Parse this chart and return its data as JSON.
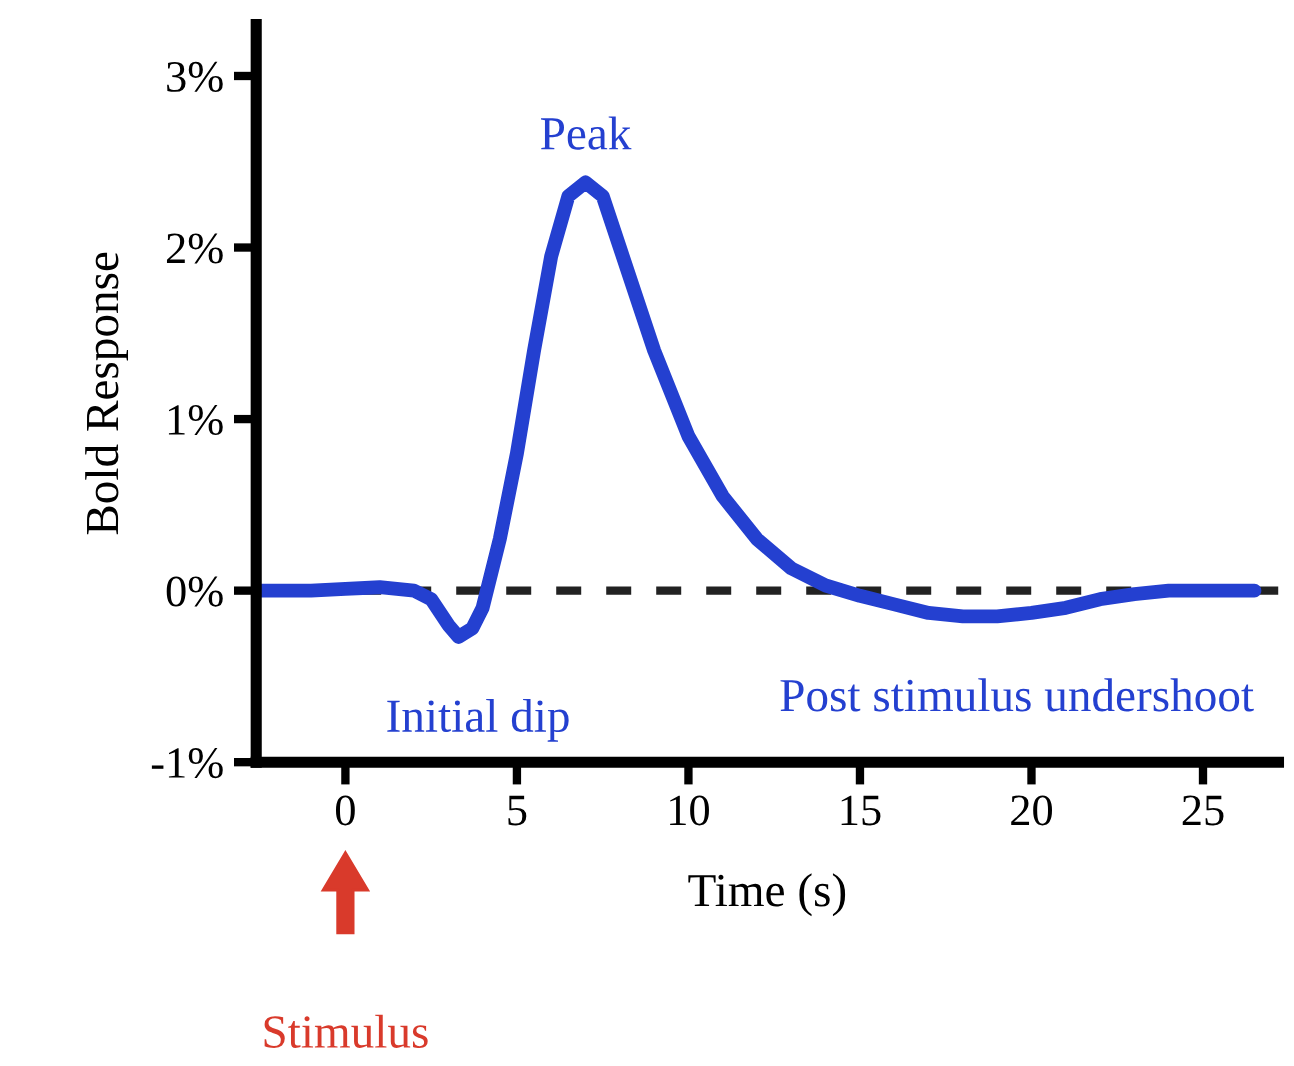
{
  "chart_data": {
    "type": "line",
    "xlabel": "Time (s)",
    "ylabel": "Bold Response",
    "xlim": [
      -2.6,
      27.2
    ],
    "ylim": [
      -1,
      3.3
    ],
    "xticks": [
      0,
      5,
      10,
      15,
      20,
      25
    ],
    "yticks": [
      {
        "value": -1,
        "label": "-1%"
      },
      {
        "value": 0,
        "label": "0%"
      },
      {
        "value": 1,
        "label": "1%"
      },
      {
        "value": 2,
        "label": "2%"
      },
      {
        "value": 3,
        "label": "3%"
      }
    ],
    "grid": false,
    "series": [
      {
        "color": "#2440d0",
        "x": [
          -2.5,
          -1,
          0,
          1,
          2,
          2.5,
          3,
          3.3,
          3.7,
          4,
          4.5,
          5,
          5.5,
          6,
          6.5,
          7,
          7.5,
          8,
          9,
          10,
          11,
          12,
          13,
          14,
          15,
          16,
          17,
          18,
          19,
          20,
          21,
          22,
          23,
          24,
          26.5
        ],
        "values": [
          0,
          0,
          0.01,
          0.02,
          0,
          -0.05,
          -0.2,
          -0.27,
          -0.22,
          -0.1,
          0.3,
          0.8,
          1.4,
          1.95,
          2.3,
          2.38,
          2.3,
          2.0,
          1.4,
          0.9,
          0.55,
          0.3,
          0.13,
          0.03,
          -0.03,
          -0.08,
          -0.13,
          -0.15,
          -0.15,
          -0.13,
          -0.1,
          -0.05,
          -0.02,
          0,
          0
        ]
      }
    ],
    "ref_lines": [
      {
        "axis": "y",
        "value": 0,
        "color": "#222222",
        "line_style": "dashed"
      }
    ],
    "annotations": [
      {
        "text": "Peak",
        "x": 7,
        "y": 2.38
      },
      {
        "text": "Initial dip",
        "x": 3.3,
        "y": -0.27
      },
      {
        "text": "Post stimulus undershoot",
        "x": 19,
        "y": -0.15
      },
      "Stimulus"
    ]
  }
}
